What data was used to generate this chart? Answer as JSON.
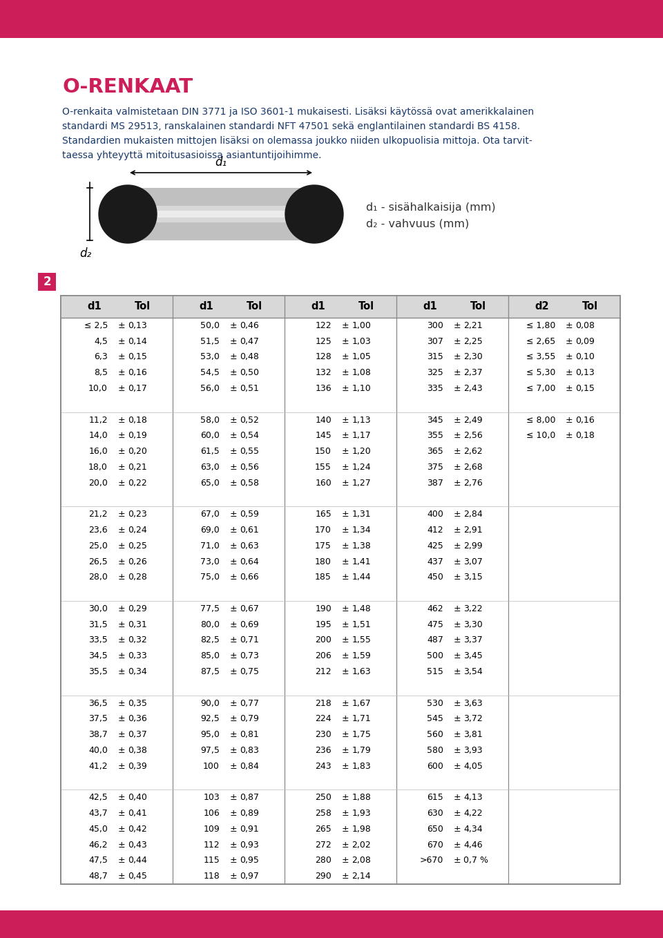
{
  "title": "O-RENKAAT",
  "title_color": "#cc1f5a",
  "body_text_lines": [
    "O-renkaita valmistetaan DIN 3771 ja ISO 3601-1 mukaisesti. Lisäksi käytössä ovat amerikkalainen",
    "standardi MS 29513, ranskalainen standardi NFT 47501 sekä englantilainen standardi BS 4158.",
    "Standardien mukaisten mittojen lisäksi on olemassa joukko niiden ulkopuolisia mittoja. Ota tarvit-",
    "taessa yhteyyttä mitoitusasioissa asiantuntijoihimme."
  ],
  "body_color": "#1a3a6b",
  "section_number": "2",
  "section_bg": "#cc1f5a",
  "top_bar_color": "#cc1f5a",
  "bottom_bar_color": "#cc1f5a",
  "col1_data": [
    [
      "≤ 2,5",
      "0,13"
    ],
    [
      "4,5",
      "0,14"
    ],
    [
      "6,3",
      "0,15"
    ],
    [
      "8,5",
      "0,16"
    ],
    [
      "10,0",
      "0,17"
    ],
    [
      "",
      ""
    ],
    [
      "11,2",
      "0,18"
    ],
    [
      "14,0",
      "0,19"
    ],
    [
      "16,0",
      "0,20"
    ],
    [
      "18,0",
      "0,21"
    ],
    [
      "20,0",
      "0,22"
    ],
    [
      "",
      ""
    ],
    [
      "21,2",
      "0,23"
    ],
    [
      "23,6",
      "0,24"
    ],
    [
      "25,0",
      "0,25"
    ],
    [
      "26,5",
      "0,26"
    ],
    [
      "28,0",
      "0,28"
    ],
    [
      "",
      ""
    ],
    [
      "30,0",
      "0,29"
    ],
    [
      "31,5",
      "0,31"
    ],
    [
      "33,5",
      "0,32"
    ],
    [
      "34,5",
      "0,33"
    ],
    [
      "35,5",
      "0,34"
    ],
    [
      "",
      ""
    ],
    [
      "36,5",
      "0,35"
    ],
    [
      "37,5",
      "0,36"
    ],
    [
      "38,7",
      "0,37"
    ],
    [
      "40,0",
      "0,38"
    ],
    [
      "41,2",
      "0,39"
    ],
    [
      "",
      ""
    ],
    [
      "42,5",
      "0,40"
    ],
    [
      "43,7",
      "0,41"
    ],
    [
      "45,0",
      "0,42"
    ],
    [
      "46,2",
      "0,43"
    ],
    [
      "47,5",
      "0,44"
    ],
    [
      "48,7",
      "0,45"
    ]
  ],
  "col2_data": [
    [
      "50,0",
      "0,46"
    ],
    [
      "51,5",
      "0,47"
    ],
    [
      "53,0",
      "0,48"
    ],
    [
      "54,5",
      "0,50"
    ],
    [
      "56,0",
      "0,51"
    ],
    [
      "",
      ""
    ],
    [
      "58,0",
      "0,52"
    ],
    [
      "60,0",
      "0,54"
    ],
    [
      "61,5",
      "0,55"
    ],
    [
      "63,0",
      "0,56"
    ],
    [
      "65,0",
      "0,58"
    ],
    [
      "",
      ""
    ],
    [
      "67,0",
      "0,59"
    ],
    [
      "69,0",
      "0,61"
    ],
    [
      "71,0",
      "0,63"
    ],
    [
      "73,0",
      "0,64"
    ],
    [
      "75,0",
      "0,66"
    ],
    [
      "",
      ""
    ],
    [
      "77,5",
      "0,67"
    ],
    [
      "80,0",
      "0,69"
    ],
    [
      "82,5",
      "0,71"
    ],
    [
      "85,0",
      "0,73"
    ],
    [
      "87,5",
      "0,75"
    ],
    [
      "",
      ""
    ],
    [
      "90,0",
      "0,77"
    ],
    [
      "92,5",
      "0,79"
    ],
    [
      "95,0",
      "0,81"
    ],
    [
      "97,5",
      "0,83"
    ],
    [
      "100",
      "0,84"
    ],
    [
      "",
      ""
    ],
    [
      "103",
      "0,87"
    ],
    [
      "106",
      "0,89"
    ],
    [
      "109",
      "0,91"
    ],
    [
      "112",
      "0,93"
    ],
    [
      "115",
      "0,95"
    ],
    [
      "118",
      "0,97"
    ]
  ],
  "col3_data": [
    [
      "122",
      "1,00"
    ],
    [
      "125",
      "1,03"
    ],
    [
      "128",
      "1,05"
    ],
    [
      "132",
      "1,08"
    ],
    [
      "136",
      "1,10"
    ],
    [
      "",
      ""
    ],
    [
      "140",
      "1,13"
    ],
    [
      "145",
      "1,17"
    ],
    [
      "150",
      "1,20"
    ],
    [
      "155",
      "1,24"
    ],
    [
      "160",
      "1,27"
    ],
    [
      "",
      ""
    ],
    [
      "165",
      "1,31"
    ],
    [
      "170",
      "1,34"
    ],
    [
      "175",
      "1,38"
    ],
    [
      "180",
      "1,41"
    ],
    [
      "185",
      "1,44"
    ],
    [
      "",
      ""
    ],
    [
      "190",
      "1,48"
    ],
    [
      "195",
      "1,51"
    ],
    [
      "200",
      "1,55"
    ],
    [
      "206",
      "1,59"
    ],
    [
      "212",
      "1,63"
    ],
    [
      "",
      ""
    ],
    [
      "218",
      "1,67"
    ],
    [
      "224",
      "1,71"
    ],
    [
      "230",
      "1,75"
    ],
    [
      "236",
      "1,79"
    ],
    [
      "243",
      "1,83"
    ],
    [
      "",
      ""
    ],
    [
      "250",
      "1,88"
    ],
    [
      "258",
      "1,93"
    ],
    [
      "265",
      "1,98"
    ],
    [
      "272",
      "2,02"
    ],
    [
      "280",
      "2,08"
    ],
    [
      "290",
      "2,14"
    ]
  ],
  "col4_data": [
    [
      "300",
      "2,21"
    ],
    [
      "307",
      "2,25"
    ],
    [
      "315",
      "2,30"
    ],
    [
      "325",
      "2,37"
    ],
    [
      "335",
      "2,43"
    ],
    [
      "",
      ""
    ],
    [
      "345",
      "2,49"
    ],
    [
      "355",
      "2,56"
    ],
    [
      "365",
      "2,62"
    ],
    [
      "375",
      "2,68"
    ],
    [
      "387",
      "2,76"
    ],
    [
      "",
      ""
    ],
    [
      "400",
      "2,84"
    ],
    [
      "412",
      "2,91"
    ],
    [
      "425",
      "2,99"
    ],
    [
      "437",
      "3,07"
    ],
    [
      "450",
      "3,15"
    ],
    [
      "",
      ""
    ],
    [
      "462",
      "3,22"
    ],
    [
      "475",
      "3,30"
    ],
    [
      "487",
      "3,37"
    ],
    [
      "500",
      "3,45"
    ],
    [
      "515",
      "3,54"
    ],
    [
      "",
      ""
    ],
    [
      "530",
      "3,63"
    ],
    [
      "545",
      "3,72"
    ],
    [
      "560",
      "3,81"
    ],
    [
      "580",
      "3,93"
    ],
    [
      "600",
      "4,05"
    ],
    [
      "",
      ""
    ],
    [
      "615",
      "4,13"
    ],
    [
      "630",
      "4,22"
    ],
    [
      "650",
      "4,34"
    ],
    [
      "670",
      "4,46"
    ],
    [
      ">670",
      "0,7 %"
    ],
    [
      "",
      ""
    ]
  ],
  "col5_data": [
    [
      "≤ 1,80",
      "0,08"
    ],
    [
      "≤ 2,65",
      "0,09"
    ],
    [
      "≤ 3,55",
      "0,10"
    ],
    [
      "≤ 5,30",
      "0,13"
    ],
    [
      "≤ 7,00",
      "0,15"
    ],
    [
      "",
      ""
    ],
    [
      "≤ 8,00",
      "0,16"
    ],
    [
      "≤ 10,0",
      "0,18"
    ],
    [
      "",
      ""
    ],
    [
      "",
      ""
    ],
    [
      "",
      ""
    ],
    [
      "",
      ""
    ],
    [
      "",
      ""
    ],
    [
      "",
      ""
    ],
    [
      "",
      ""
    ],
    [
      "",
      ""
    ],
    [
      "",
      ""
    ],
    [
      "",
      ""
    ],
    [
      "",
      ""
    ],
    [
      "",
      ""
    ],
    [
      "",
      ""
    ],
    [
      "",
      ""
    ],
    [
      "",
      ""
    ],
    [
      "",
      ""
    ],
    [
      "",
      ""
    ],
    [
      "",
      ""
    ],
    [
      "",
      ""
    ],
    [
      "",
      ""
    ],
    [
      "",
      ""
    ],
    [
      "",
      ""
    ],
    [
      "",
      ""
    ],
    [
      "",
      ""
    ],
    [
      "",
      ""
    ],
    [
      "",
      ""
    ],
    [
      "",
      ""
    ],
    [
      "",
      ""
    ]
  ]
}
